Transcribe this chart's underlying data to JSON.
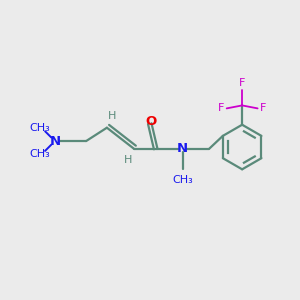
{
  "bg_color": "#ebebeb",
  "bond_color": "#5a8a7a",
  "bond_width": 1.6,
  "N_color": "#1a1aee",
  "O_color": "#ee0000",
  "F_color": "#cc00cc",
  "H_color": "#5a8a7a",
  "figsize": [
    3.0,
    3.0
  ],
  "dpi": 100,
  "xlim": [
    0,
    10
  ],
  "ylim": [
    0,
    10
  ],
  "font_size_atom": 9.5,
  "font_size_small": 8.0
}
